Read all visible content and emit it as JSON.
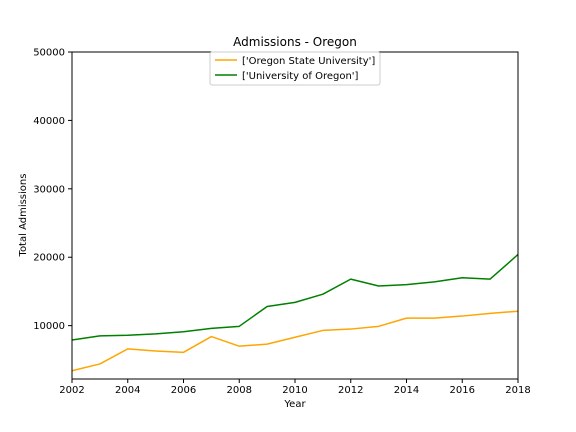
{
  "chart_data": {
    "type": "line",
    "title": "Admissions - Oregon",
    "xlabel": "Year",
    "ylabel": "Total Admissions",
    "xlim": [
      2002,
      2018
    ],
    "ylim": [
      2200,
      50000
    ],
    "xticks": [
      "2002",
      "2004",
      "2006",
      "2008",
      "2010",
      "2012",
      "2014",
      "2016",
      "2018"
    ],
    "yticks": [
      "10000",
      "20000",
      "30000",
      "40000",
      "50000"
    ],
    "grid": false,
    "legend_position": "upper center",
    "x": [
      2002,
      2003,
      2004,
      2005,
      2006,
      2007,
      2008,
      2009,
      2010,
      2011,
      2012,
      2013,
      2014,
      2015,
      2016,
      2017,
      2018
    ],
    "series": [
      {
        "name": "['Oregon State University']",
        "color": "#ffa500",
        "values": [
          3400,
          4400,
          6600,
          6300,
          6100,
          8400,
          7000,
          7300,
          8300,
          9300,
          9500,
          9900,
          11100,
          11100,
          11400,
          11800,
          12100
        ]
      },
      {
        "name": "['University of Oregon']",
        "color": "#008000",
        "values": [
          7900,
          8500,
          8600,
          8800,
          9100,
          9600,
          9900,
          12800,
          13400,
          14600,
          16800,
          15800,
          16000,
          16400,
          17000,
          16800,
          20400
        ]
      }
    ]
  }
}
